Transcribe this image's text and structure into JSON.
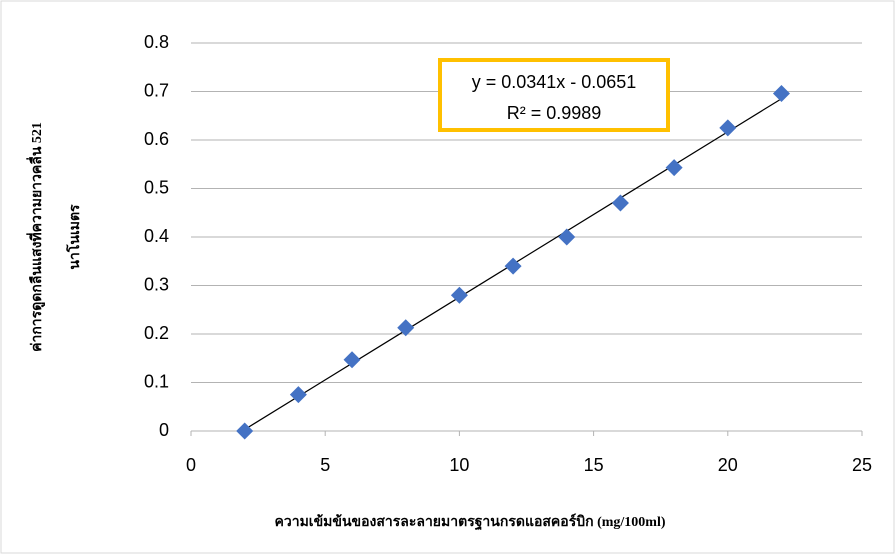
{
  "chart_data": {
    "type": "scatter",
    "ylabel": [
      "ค่าการดูดกลืนแสงที่ความยาวคลื่น 521",
      "นาโนเมตร"
    ],
    "xlabel": "ความเข้มข้นของสารละลายมาตรฐานกรดแอสคอร์บิก (mg/100ml)",
    "x": [
      2,
      4,
      6,
      8,
      10,
      12,
      14,
      16,
      18,
      20,
      22
    ],
    "values": [
      0,
      0.075,
      0.147,
      0.213,
      0.28,
      0.34,
      0.4,
      0.47,
      0.543,
      0.625,
      0.696
    ],
    "color": "#4472c4",
    "xlim": [
      0,
      25
    ],
    "xticks": [
      0,
      5,
      10,
      15,
      20,
      25
    ],
    "ylim": [
      0,
      0.8
    ],
    "yticks": [
      0,
      0.1,
      0.2,
      0.3,
      0.4,
      0.5,
      0.6,
      0.7,
      0.8
    ],
    "grid": true,
    "trendline": {
      "equation": "y = 0.0341x - 0.0651",
      "r_squared": "R² = 0.9989",
      "slope": 0.0341,
      "intercept": -0.0651,
      "color": "#000000"
    },
    "annotation_border": "#ffc000"
  }
}
